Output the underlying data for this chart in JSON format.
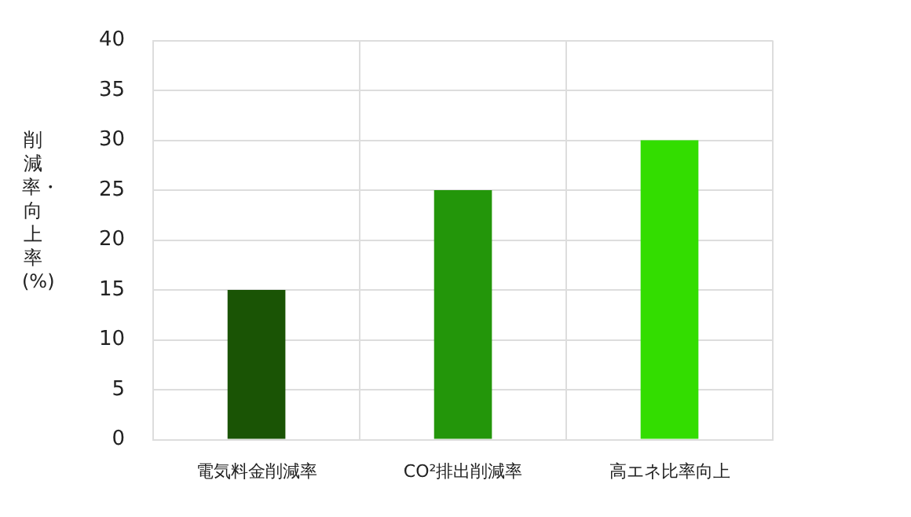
{
  "chart_data": {
    "type": "bar",
    "ylabel": "削減率・向上率(%)",
    "categories": [
      "電気料金削減率",
      "CO²排出削減率",
      "高エネ比率向上"
    ],
    "values": [
      15,
      25,
      30
    ],
    "colors": [
      "#1a5405",
      "#23960a",
      "#33dd00"
    ],
    "ylim": [
      0,
      40
    ],
    "yticks": [
      0,
      5,
      10,
      15,
      20,
      25,
      30,
      35,
      40
    ],
    "grid": true
  }
}
